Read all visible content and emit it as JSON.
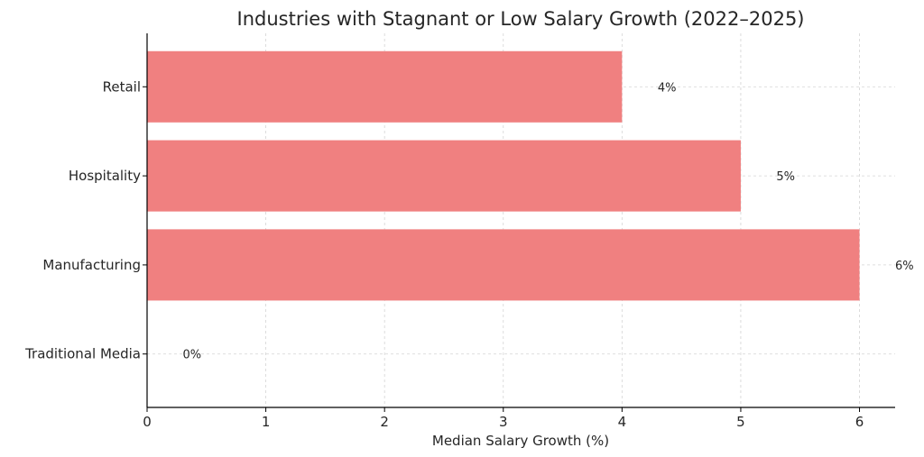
{
  "chart_data": {
    "type": "bar",
    "orientation": "horizontal",
    "title": "Industries with Stagnant or Low Salary Growth (2022–2025)",
    "xlabel": "Median Salary Growth (%)",
    "ylabel": "",
    "categories": [
      "Retail",
      "Hospitality",
      "Manufacturing",
      "Traditional Media"
    ],
    "values": [
      4,
      5,
      6,
      0
    ],
    "value_labels": [
      "4%",
      "5%",
      "6%",
      "0%"
    ],
    "xlim": [
      0,
      6.3
    ],
    "xticks": [
      0,
      1,
      2,
      3,
      4,
      5,
      6
    ],
    "xtick_labels": [
      "0",
      "1",
      "2",
      "3",
      "4",
      "5",
      "6"
    ],
    "grid": true,
    "bar_color": "#f08080"
  }
}
